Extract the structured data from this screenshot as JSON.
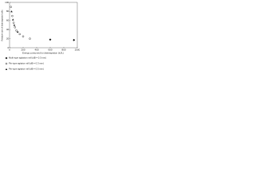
{
  "chart_data": {
    "type": "scatter",
    "x_label": "Energy consumed for disintegration (kJ/L)",
    "y_label": "Relative size of disintegrated cells",
    "xlim": [
      0,
      1000
    ],
    "xticks": [
      0,
      200,
      400,
      600,
      800,
      1000
    ],
    "ylim": [
      0,
      100
    ],
    "yticks": [
      0,
      20,
      40,
      60,
      80,
      100
    ],
    "series": [
      {
        "name": "Multi-type agitation mill (dB = 0.3 mm)",
        "color": "#111111",
        "marker": "diamond",
        "x": [
          600,
          950
        ],
        "values": [
          18,
          17
        ]
      },
      {
        "name": "Pin-type agitator mill (dB = 0.3 mm)",
        "color": "#111111",
        "marker": "circle-open",
        "x": [
          20,
          40,
          60,
          80,
          100,
          150,
          200,
          300
        ],
        "values": [
          90,
          70,
          55,
          45,
          38,
          30,
          25,
          20
        ]
      },
      {
        "name": "Pin-type agitator mill (dB = 0.5 mm)",
        "color": "#111111",
        "marker": "triangle",
        "x": [
          30,
          50,
          70,
          120
        ],
        "values": [
          80,
          62,
          50,
          35
        ]
      }
    ]
  }
}
